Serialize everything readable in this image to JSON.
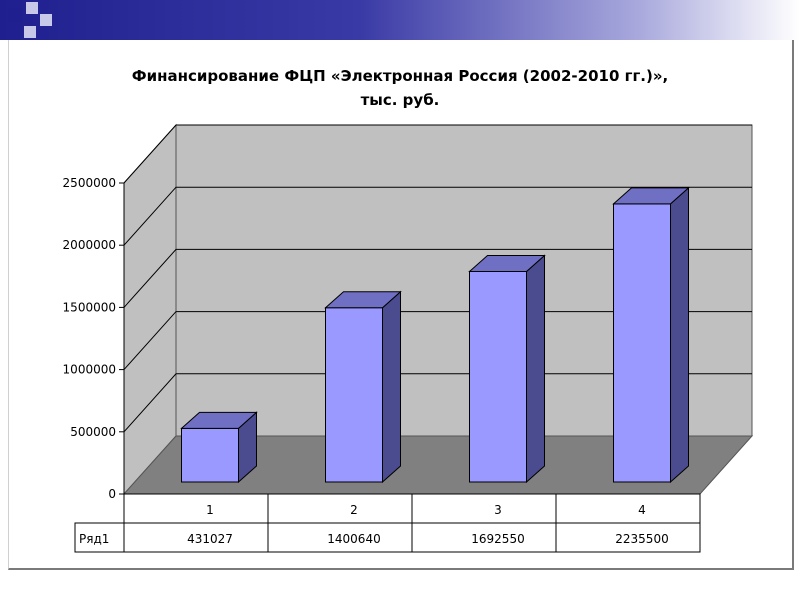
{
  "header": {
    "colors": {
      "dark": "#1f1f8f",
      "light": "#ffffff"
    }
  },
  "chart_data": {
    "type": "bar",
    "title_line1": "Финансирование ФЦП «Электронная Россия (2002-2010 гг.)»,",
    "title_line2": "тыс. руб.",
    "categories": [
      "1",
      "2",
      "3",
      "4"
    ],
    "series": [
      {
        "name": "Ряд1",
        "values": [
          431027,
          1400640,
          1692550,
          2235500
        ]
      }
    ],
    "ylim": [
      0,
      2500000
    ],
    "yticks": [
      "0",
      "500000",
      "1000000",
      "1500000",
      "2000000",
      "2500000"
    ],
    "grid": true,
    "three_d": true,
    "data_table": true,
    "colors": {
      "bar_front": "#9999ff",
      "bar_side": "#4b4b8f",
      "bar_top": "#6f6fc4",
      "wall": "#c0c0c0",
      "floor": "#808080"
    }
  }
}
